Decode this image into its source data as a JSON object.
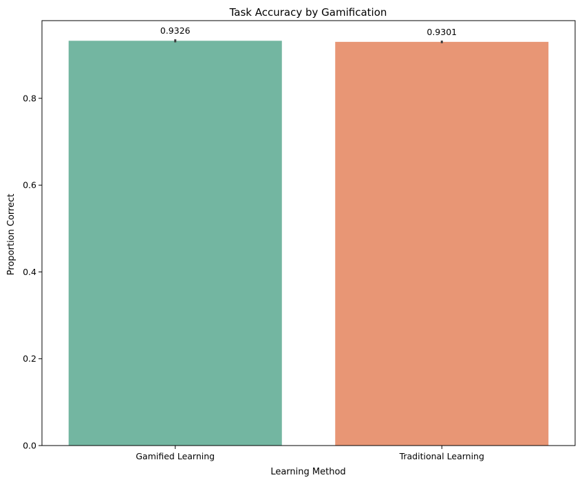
{
  "chart_data": {
    "type": "bar",
    "title": "Task Accuracy by Gamification",
    "xlabel": "Learning Method",
    "ylabel": "Proportion Correct",
    "categories": [
      "Gamified Learning",
      "Traditional Learning"
    ],
    "values": [
      0.9326,
      0.9301
    ],
    "value_labels": [
      "0.9326",
      "0.9301"
    ],
    "error_bars": [
      [
        0.929,
        0.936
      ],
      [
        0.927,
        0.933
      ]
    ],
    "colors": [
      "#73b6a1",
      "#e89675"
    ],
    "ylim": [
      0,
      0.979
    ],
    "yticks": [
      0.0,
      0.2,
      0.4,
      0.6,
      0.8
    ],
    "ytick_labels": [
      "0.0",
      "0.2",
      "0.4",
      "0.6",
      "0.8"
    ],
    "grid": false,
    "legend": "none"
  }
}
